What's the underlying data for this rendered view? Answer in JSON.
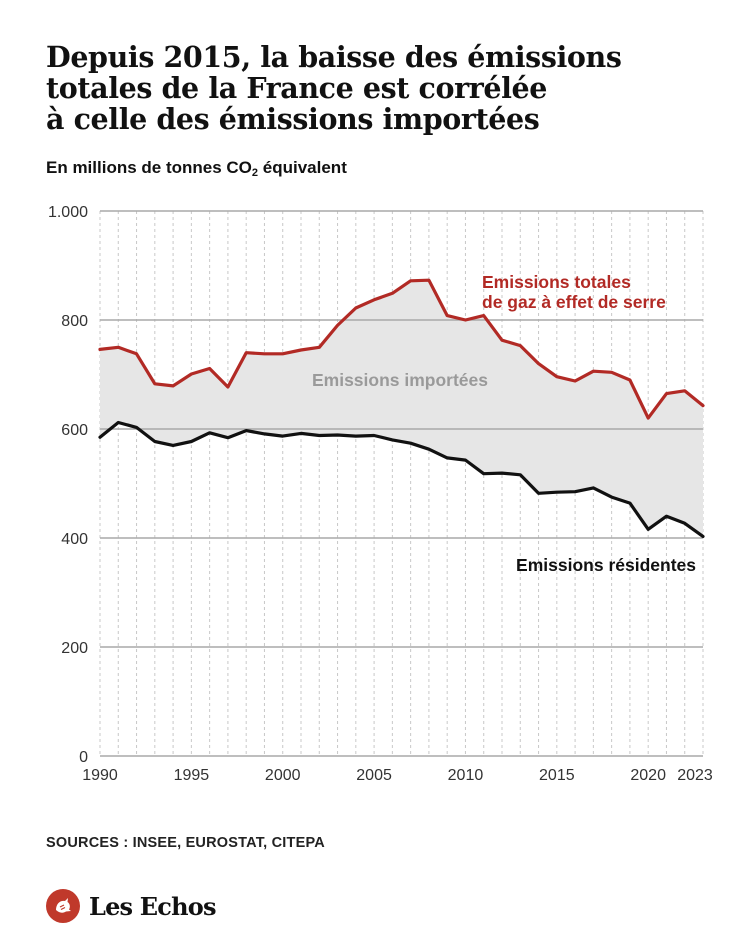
{
  "title_line1": "Depuis 2015, la baisse des émissions",
  "title_line2": "totales de la France est corrélée",
  "title_line3": "à celle des émissions importées",
  "subtitle_before": "En millions de tonnes CO",
  "subtitle_sub": "2",
  "subtitle_after": " équivalent",
  "sources": "SOURCES : INSEE, EUROSTAT, CITEPA",
  "brand": "Les Echos",
  "chart_data": {
    "type": "line",
    "x": [
      1990,
      1991,
      1992,
      1993,
      1994,
      1995,
      1996,
      1997,
      1998,
      1999,
      2000,
      2001,
      2002,
      2003,
      2004,
      2005,
      2006,
      2007,
      2008,
      2009,
      2010,
      2011,
      2012,
      2013,
      2014,
      2015,
      2016,
      2017,
      2018,
      2019,
      2020,
      2021,
      2022,
      2023
    ],
    "xticks": [
      {
        "value": 1990,
        "label": "1990"
      },
      {
        "value": 1995,
        "label": "1995"
      },
      {
        "value": 2000,
        "label": "2000"
      },
      {
        "value": 2005,
        "label": "2005"
      },
      {
        "value": 2010,
        "label": "2010"
      },
      {
        "value": 2015,
        "label": "2015"
      },
      {
        "value": 2020,
        "label": "2020"
      },
      {
        "value": 2023,
        "label": "2023"
      }
    ],
    "yticks": [
      {
        "value": 0,
        "label": "0"
      },
      {
        "value": 200,
        "label": "200"
      },
      {
        "value": 400,
        "label": "400"
      },
      {
        "value": 600,
        "label": "600"
      },
      {
        "value": 800,
        "label": "800"
      },
      {
        "value": 1000,
        "label": "1.000"
      }
    ],
    "ylim": [
      0,
      1000
    ],
    "xlim": [
      1990,
      2023
    ],
    "grid": true,
    "series": [
      {
        "name": "Emissions totales de gaz à effet de serre",
        "label_lines": [
          "Emissions totales",
          "de gaz à effet de serre"
        ],
        "color": "#b22a25",
        "values": [
          746,
          750,
          738,
          683,
          679,
          701,
          711,
          677,
          740,
          738,
          738,
          745,
          750,
          790,
          822,
          837,
          849,
          872,
          873,
          808,
          800,
          808,
          763,
          753,
          720,
          696,
          688,
          706,
          704,
          690,
          620,
          665,
          670,
          643
        ]
      },
      {
        "name": "Emissions résidentes",
        "label_lines": [
          "Emissions résidentes"
        ],
        "color": "#111111",
        "values": [
          585,
          612,
          603,
          577,
          570,
          577,
          593,
          584,
          597,
          591,
          587,
          592,
          588,
          589,
          587,
          588,
          580,
          574,
          563,
          547,
          543,
          518,
          519,
          516,
          482,
          484,
          485,
          492,
          475,
          464,
          416,
          440,
          427,
          403
        ]
      }
    ],
    "area": {
      "label": "Emissions importées",
      "color": "#e6e6e6"
    }
  }
}
